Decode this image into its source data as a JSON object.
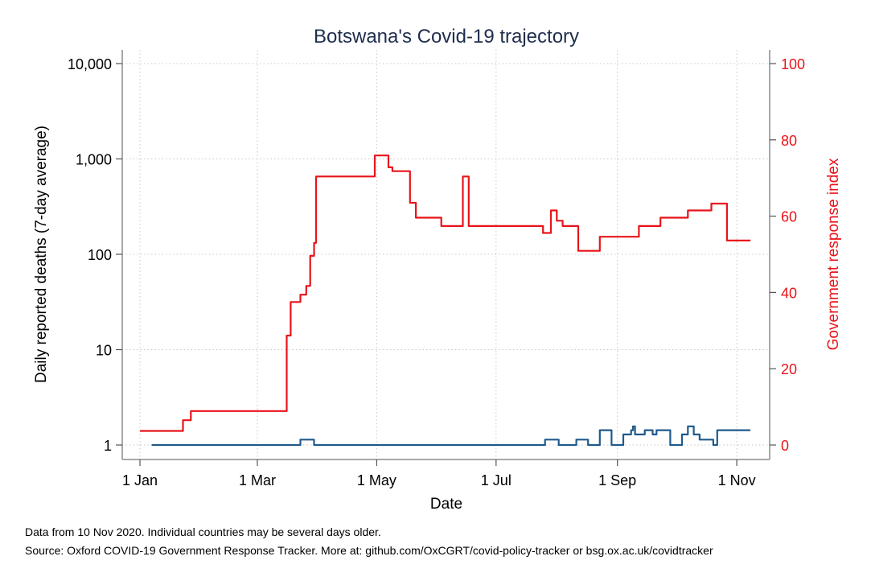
{
  "title": "Botswana's Covid-19 trajectory",
  "notes": {
    "line1": "Data from 10 Nov 2020. Individual countries may be several days older.",
    "line2": "Source: Oxford COVID-19 Government Response Tracker. More at: github.com/OxCGRT/covid-policy-tracker or bsg.ox.ac.uk/covidtracker"
  },
  "chart_data": {
    "type": "line",
    "title": "Botswana's Covid-19 trajectory",
    "xlabel": "Date",
    "ylabel": "Daily reported deaths (7-day average)",
    "y2label": "Government response index",
    "x_ticks": [
      "1 Jan",
      "1 Mar",
      "1 May",
      "1 Jul",
      "1 Sep",
      "1 Nov"
    ],
    "x_tick_dates": [
      "2020-01-01",
      "2020-03-01",
      "2020-05-01",
      "2020-07-01",
      "2020-09-01",
      "2020-11-01"
    ],
    "xlim": [
      "2020-01-01",
      "2020-11-10"
    ],
    "y_scale": "log",
    "y_ticks": [
      "1",
      "10",
      "100",
      "1,000",
      "10,000"
    ],
    "y_tick_values": [
      1,
      10,
      100,
      1000,
      10000
    ],
    "ylim": [
      1,
      10000
    ],
    "y2_ticks": [
      "0",
      "20",
      "40",
      "60",
      "80",
      "100"
    ],
    "y2_tick_values": [
      0,
      20,
      40,
      60,
      80,
      100
    ],
    "y2lim": [
      0,
      100
    ],
    "grid": true,
    "series": [
      {
        "axis": "left",
        "color": "#1f5a8c",
        "steps": [
          [
            "2020-01-07",
            1
          ],
          [
            "2020-03-23",
            1.14
          ],
          [
            "2020-03-30",
            1
          ],
          [
            "2020-07-26",
            1.14
          ],
          [
            "2020-08-02",
            1
          ],
          [
            "2020-08-11",
            1.14
          ],
          [
            "2020-08-17",
            1
          ],
          [
            "2020-08-23",
            1.43
          ],
          [
            "2020-08-29",
            1
          ],
          [
            "2020-09-04",
            1.29
          ],
          [
            "2020-09-08",
            1.43
          ],
          [
            "2020-09-09",
            1.57
          ],
          [
            "2020-09-10",
            1.29
          ],
          [
            "2020-09-15",
            1.43
          ],
          [
            "2020-09-19",
            1.29
          ],
          [
            "2020-09-21",
            1.43
          ],
          [
            "2020-09-28",
            1
          ],
          [
            "2020-10-04",
            1.29
          ],
          [
            "2020-10-07",
            1.57
          ],
          [
            "2020-10-10",
            1.29
          ],
          [
            "2020-10-13",
            1.14
          ],
          [
            "2020-10-20",
            1
          ],
          [
            "2020-10-22",
            1.43
          ],
          [
            "2020-11-08",
            1.43
          ]
        ]
      },
      {
        "axis": "right",
        "color": "#e8141a",
        "steps": [
          [
            "2020-01-01",
            3.7
          ],
          [
            "2020-01-23",
            6.5
          ],
          [
            "2020-01-27",
            8.9
          ],
          [
            "2020-03-16",
            28.7
          ],
          [
            "2020-03-18",
            37.5
          ],
          [
            "2020-03-23",
            39.4
          ],
          [
            "2020-03-26",
            41.7
          ],
          [
            "2020-03-28",
            49.6
          ],
          [
            "2020-03-30",
            53
          ],
          [
            "2020-03-31",
            70.4
          ],
          [
            "2020-04-30",
            75.9
          ],
          [
            "2020-05-07",
            72.8
          ],
          [
            "2020-05-09",
            71.8
          ],
          [
            "2020-05-18",
            63.5
          ],
          [
            "2020-05-21",
            59.6
          ],
          [
            "2020-06-03",
            57.4
          ],
          [
            "2020-06-14",
            70.4
          ],
          [
            "2020-06-17",
            57.4
          ],
          [
            "2020-07-25",
            55.6
          ],
          [
            "2020-07-29",
            61.5
          ],
          [
            "2020-08-01",
            58.8
          ],
          [
            "2020-08-04",
            57.4
          ],
          [
            "2020-08-12",
            50.9
          ],
          [
            "2020-08-23",
            54.6
          ],
          [
            "2020-09-12",
            57.4
          ],
          [
            "2020-09-23",
            59.6
          ],
          [
            "2020-10-07",
            61.5
          ],
          [
            "2020-10-19",
            63.3
          ],
          [
            "2020-10-27",
            53.6
          ],
          [
            "2020-11-08",
            53.6
          ]
        ]
      }
    ]
  }
}
